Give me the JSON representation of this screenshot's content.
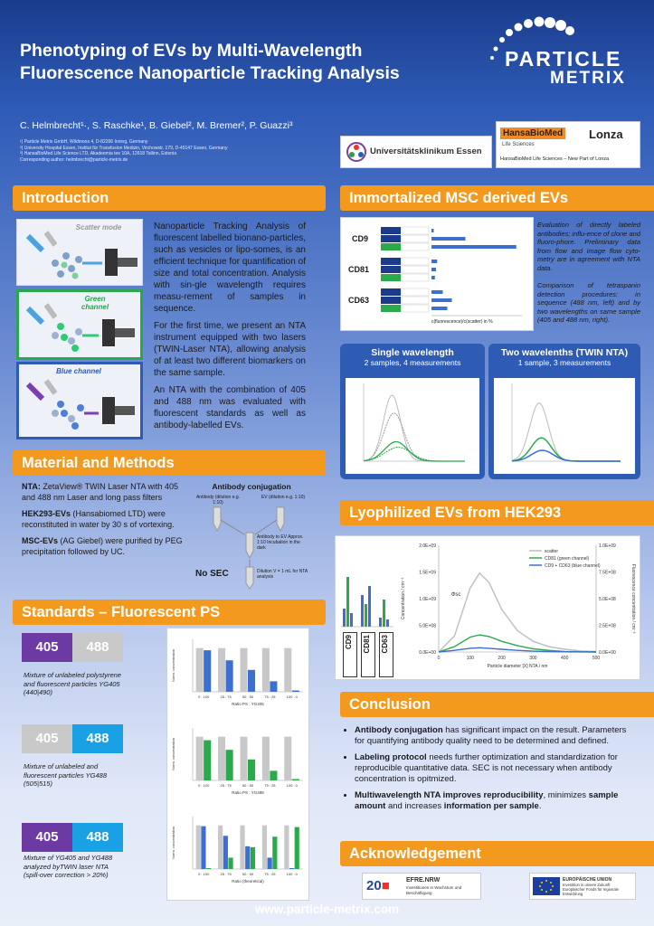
{
  "header": {
    "title_line1": "Phenotyping of EVs by Multi-Wavelength",
    "title_line2": "Fluorescence Nanoparticle Tracking Analysis",
    "authors": "C. Helmbrecht¹·, S. Raschke¹, B. Giebel², M. Bremer², P. Guazzi³",
    "affil1": "¹) Particle Metrix GmbH, Wildmoos 4, D-82266 Inning, Germany",
    "affil2": "²) University Hospital Essen, Institut für Transfusion Medizin, Virchowstr. 179, D-45147 Essen, Germany",
    "affil3": "³) HansaBioMed Life Science LTD, Akadeemia tee 10A, 12618 Tallinn, Estonia",
    "affil4": "Corresponding author: helmbrecht@particle-metrix.de",
    "logo_line1": "PARTICLE",
    "logo_line2": "METRIX"
  },
  "partners": {
    "ukessen": "Universitätsklinikum Essen",
    "hansa": "HansaBioMed",
    "hansa_sub": "Life Sciences",
    "lonza": "Lonza",
    "hansa_caption": "HansaBioMed Life Sciences – New Part of Lonza"
  },
  "intro": {
    "heading": "Introduction",
    "label_scatter": "Scatter mode",
    "label_green": "Green channel",
    "label_blue": "Blue channel",
    "p1": "Nanoparticle Tracking Analysis of fluorescent labelled bionano-particles, such as vesicles or lipo-somes, is an efficient technique for quantification of size and total concentration. Analysis with sin-gle wavelength requires measu-rement of samples in sequence.",
    "p2": "For the first time, we present an NTA instrument equipped with two lasers (TWIN-Laser NTA), allowing analysis of at least two different biomarkers on the same sample.",
    "p3": "An NTA with the combination of 405 and 488 nm was evaluated with fluorescent standards as well as antibody-labelled EVs."
  },
  "methods": {
    "heading": "Material and Methods",
    "nta_bold": "NTA:",
    "nta_text": " ZetaView® TWIN Laser NTA with 405 and 488 nm Laser and long pass filters",
    "hek_bold": "HEK293-EVs",
    "hek_text": " (Hansabiomed LTD) were reconstituted in water by 30 s of vortexing.",
    "msc_bold": "MSC-EVs",
    "msc_text": " (AG Giebel) were purified by PEG precipitation followed by UC.",
    "diagram_title": "Antibody conjugation",
    "antibody": "Antibody (dilution e.g. 1:10)",
    "ev": "EV (dilution e.g. 1:10)",
    "step1": "Antibody to EV Approx. 1:10 Incubation in the dark",
    "step2": "Dilution V = 1 mL for NTA analysis",
    "nosec": "No SEC"
  },
  "standards": {
    "heading": "Standards – Fluorescent PS",
    "b405": "405",
    "b488": "488",
    "cap1": "Mixture of unlabeled polystyrene and fluorescent particles YG405 (440|490)",
    "cap2": "Mixture of unlabeled and fluorescent particles YG488 (505|515)",
    "cap3": "Mixture of YG405 and YG488 analyzed byTWIN laser NTA (spill-over correction > 20%)",
    "chart1_title": "Ratio PS : YG405",
    "chart2_title": "Ratio PS : YG488",
    "chart3_title": "Ratio (theoretical)",
    "ylabel": "Norm. concentration"
  },
  "msc": {
    "heading": "Immortalized MSC derived EVs",
    "cd9": "CD9",
    "cd81": "CD81",
    "cd63": "CD63",
    "xlabel": "c(fluorescence)/c(scatter) in %",
    "note1": "Evaluation of directly labeled antibodies; influ-ence of clone and fluoro-phore. Preliminary data from flow and image flow cyto-metry are in agreement with NTA data.",
    "note2": "Comparison of tetraspanin detection procedures: in sequence (488 nm, left) and by two wavelengths on same sample (405 and 488 nm, right).",
    "single_title": "Single wavelength",
    "single_sub": "2 samples, 4 measurements",
    "twin_title": "Two wavelenths (TWIN NTA)",
    "twin_sub": "1 sample, 3 measurements"
  },
  "lyo": {
    "heading": "Lyophilized EVs from HEK293",
    "legend_scatter": "scatter",
    "legend_cd81": "CD81 (green channel)",
    "legend_cd9": "CD9 + CD63 (blue channel)",
    "xlabel": "Particle diameter [X] NTA / nm",
    "ylabel_left": "Concentration / cm⁻³",
    "ylabel_right": "Fluorescence concentration / cm⁻³",
    "yticks_left": [
      "2.0E+09",
      "1.5E+09",
      "1.0E+09",
      "5.0E+08",
      "0.0E+00"
    ],
    "yticks_right": [
      "1.0E+09",
      "7.5E+08",
      "5.0E+08",
      "2.5E+08",
      "0.0E+00"
    ],
    "xticks": [
      "0",
      "100",
      "200",
      "300",
      "400",
      "500"
    ],
    "phi": "Φsc",
    "col_cd9": "CD9",
    "col_cd81": "CD81",
    "col_cd63": "CD63"
  },
  "conclusion": {
    "heading": "Conclusion",
    "b1_bold": "Antibody conjugation",
    "b1_text": " has significant impact on the result. Parameters for quantifying antibody quality need to be determined and defined.",
    "b2_bold": "Labeling protocol",
    "b2_text": " needs further optimization and standardization for reproducible quantitative data. SEC is not necessary when antibody concentration is opitmized.",
    "b3_bold": "Multiwavelength NTA improves reproducibility",
    "b3_mid": ", minimizes ",
    "b3_bold2": "sample amount",
    "b3_mid2": " and increases ",
    "b3_bold3": "information per sample",
    "b3_end": "."
  },
  "ack": {
    "heading": "Acknowledgement",
    "efre": "EFRE.NRW",
    "efre_sub": "Investitionen in Wachstum und Beschäftigung",
    "eu": "EUROPÄISCHE UNION",
    "eu_sub": "Investition in unsere Zukunft Europäischer Fonds für regionale Entwicklung",
    "year": "2014-2020"
  },
  "footer": {
    "url": "www.particle-metrix.com"
  },
  "chart_data": [
    {
      "type": "bar",
      "title": "Ratio PS : YG405",
      "categories": [
        "0 : 100",
        "25 : 75",
        "50 : 50",
        "75 : 25",
        "100 : 0"
      ],
      "series": [
        {
          "name": "Scatter mode",
          "values": [
            100,
            100,
            100,
            100,
            100
          ]
        },
        {
          "name": "Blue channel",
          "values": [
            95,
            72,
            50,
            24,
            3
          ]
        }
      ],
      "ylim": [
        0,
        120
      ]
    },
    {
      "type": "bar",
      "title": "Ratio PS : YG488",
      "categories": [
        "0 : 100",
        "25 : 75",
        "50 : 50",
        "75 : 25",
        "100 : 0"
      ],
      "series": [
        {
          "name": "Scatter mode",
          "values": [
            100,
            100,
            100,
            100,
            100
          ]
        },
        {
          "name": "Green channel",
          "values": [
            92,
            70,
            48,
            22,
            3
          ]
        }
      ],
      "ylim": [
        0,
        120
      ]
    },
    {
      "type": "bar",
      "title": "Ratio (theoretical)",
      "categories": [
        "0 : 100",
        "25 : 75",
        "50 : 50",
        "75 : 25",
        "100 : 0"
      ],
      "series": [
        {
          "name": "Scatter",
          "values": [
            100,
            100,
            100,
            100,
            100
          ]
        },
        {
          "name": "YG405",
          "values": [
            98,
            76,
            52,
            26,
            2
          ]
        },
        {
          "name": "YG488",
          "values": [
            2,
            26,
            50,
            74,
            96
          ]
        }
      ],
      "ylim": [
        0,
        120
      ]
    },
    {
      "type": "line",
      "title": "Lyophilized EVs from HEK293",
      "x": [
        0,
        50,
        100,
        130,
        160,
        200,
        250,
        300,
        350,
        400,
        450,
        500
      ],
      "series": [
        {
          "name": "scatter",
          "values": [
            0,
            300000000.0,
            1200000000.0,
            1480000000.0,
            1300000000.0,
            800000000.0,
            400000000.0,
            200000000.0,
            100000000.0,
            50000000.0,
            20000000.0,
            10000000.0
          ]
        },
        {
          "name": "CD81 (green channel)",
          "values": [
            0,
            100000000.0,
            280000000.0,
            320000000.0,
            290000000.0,
            200000000.0,
            120000000.0,
            60000000.0,
            30000000.0,
            10000000.0,
            5000000.0,
            0
          ]
        },
        {
          "name": "CD9 + CD63 (blue channel)",
          "values": [
            0,
            30000000.0,
            70000000.0,
            80000000.0,
            70000000.0,
            50000000.0,
            30000000.0,
            15000000.0,
            8000000.0,
            4000000.0,
            2000000.0,
            0
          ]
        }
      ],
      "xlabel": "Particle diameter [X] NTA / nm",
      "ylabel": "Concentration / cm⁻³",
      "xlim": [
        0,
        500
      ],
      "ylim": [
        0,
        2000000000.0
      ]
    },
    {
      "type": "bar",
      "title": "Immortalized MSC derived EVs",
      "categories": [
        "CD9-1",
        "CD9-2",
        "CD9-3",
        "CD81-1",
        "CD81-2",
        "CD81-3",
        "CD63-1",
        "CD63-2",
        "CD63-3"
      ],
      "values": [
        2,
        30,
        75,
        5,
        4,
        3,
        10,
        18,
        14
      ],
      "xlabel": "c(fluorescence)/c(scatter) in %"
    }
  ]
}
